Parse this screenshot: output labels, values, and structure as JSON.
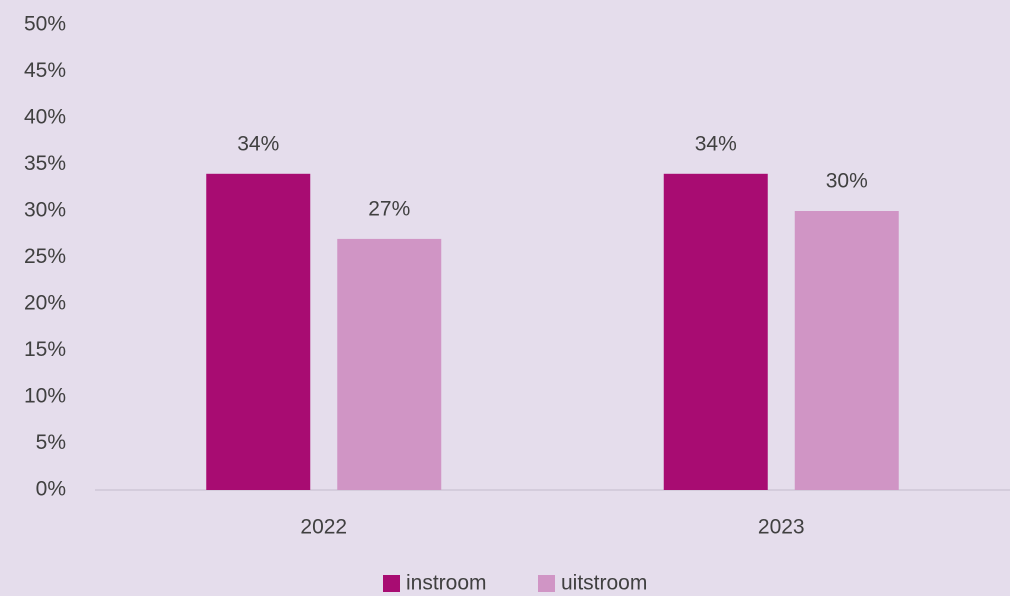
{
  "chart_data": {
    "type": "bar",
    "categories": [
      "2022",
      "2023"
    ],
    "series": [
      {
        "name": "instroom",
        "color": "#a80c72",
        "values": [
          34,
          34
        ],
        "value_labels": [
          "34%",
          "34%"
        ]
      },
      {
        "name": "uitstroom",
        "color": "#d095c5",
        "values": [
          27,
          30
        ],
        "value_labels": [
          "27%",
          "30%"
        ]
      }
    ],
    "ylim": [
      0,
      50
    ],
    "yticks": [
      {
        "value": 0,
        "label": "0%"
      },
      {
        "value": 5,
        "label": "5%"
      },
      {
        "value": 10,
        "label": "10%"
      },
      {
        "value": 15,
        "label": "15%"
      },
      {
        "value": 20,
        "label": "20%"
      },
      {
        "value": 25,
        "label": "25%"
      },
      {
        "value": 30,
        "label": "30%"
      },
      {
        "value": 35,
        "label": "35%"
      },
      {
        "value": 40,
        "label": "40%"
      },
      {
        "value": 45,
        "label": "45%"
      },
      {
        "value": 50,
        "label": "50%"
      }
    ],
    "grid": false,
    "legend": "bottom"
  }
}
